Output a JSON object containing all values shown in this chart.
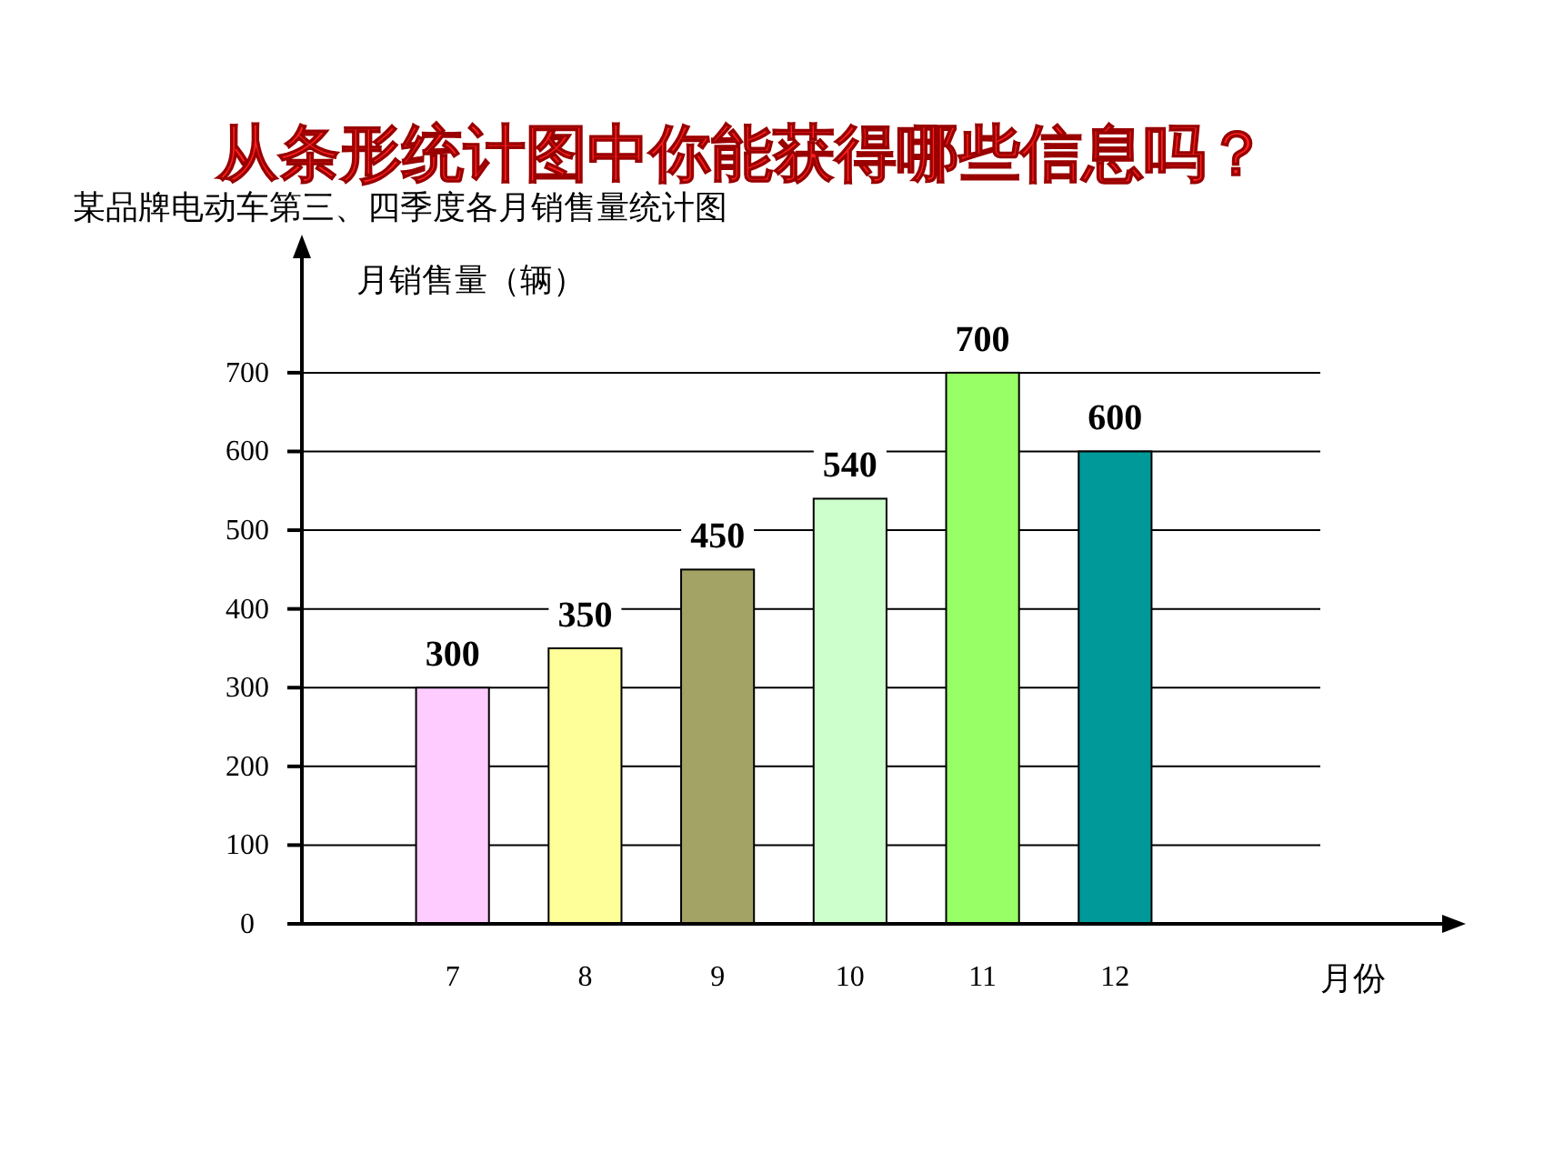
{
  "chart_data": {
    "type": "bar",
    "title": "从条形统计图中你能获得哪些信息吗？",
    "subtitle": "某品牌电动车第三、四季度各月销售量统计图",
    "ylabel": "月销售量（辆）",
    "xlabel": "月份",
    "categories": [
      "7",
      "8",
      "9",
      "10",
      "11",
      "12"
    ],
    "values": [
      300,
      350,
      450,
      540,
      700,
      600
    ],
    "colors": [
      "#ffccff",
      "#ffff99",
      "#a3a365",
      "#ccffcc",
      "#99ff66",
      "#009999"
    ],
    "ylim": [
      0,
      850
    ],
    "yticks": [
      0,
      100,
      200,
      300,
      400,
      500,
      600,
      700
    ],
    "grid": "y",
    "data_labels": true
  }
}
